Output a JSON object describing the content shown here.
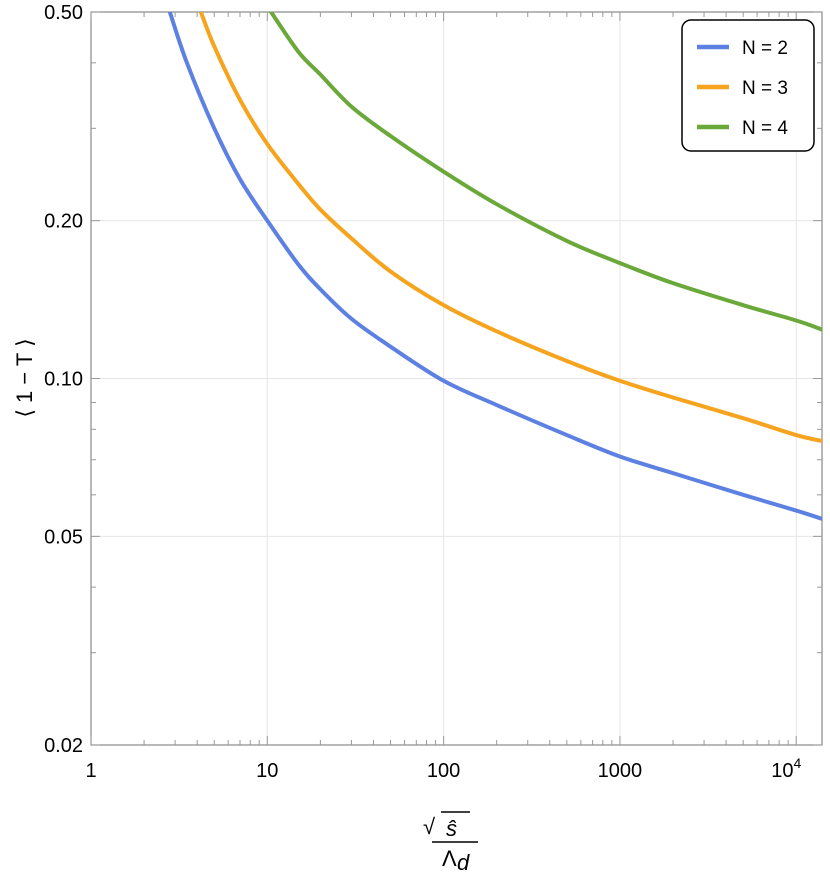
{
  "chart_data": {
    "type": "line",
    "xscale": "log",
    "yscale": "log",
    "xlim": [
      1,
      14000
    ],
    "ylim": [
      0.02,
      0.5
    ],
    "x_ticks": [
      {
        "value": 1,
        "label": "1"
      },
      {
        "value": 10,
        "label": "10"
      },
      {
        "value": 100,
        "label": "100"
      },
      {
        "value": 1000,
        "label": "1000"
      },
      {
        "value": 10000,
        "label": "10",
        "sup": "4"
      }
    ],
    "y_ticks": [
      {
        "value": 0.5,
        "label": "0.50"
      },
      {
        "value": 0.2,
        "label": "0.20"
      },
      {
        "value": 0.1,
        "label": "0.10"
      },
      {
        "value": 0.05,
        "label": "0.05"
      },
      {
        "value": 0.02,
        "label": "0.02"
      }
    ],
    "ylabel": "⟨ 1 − T ⟩",
    "xlabel": {
      "numerator": "ŝ",
      "denominator": "Λ",
      "denominator_sub": "d"
    },
    "legend_position": "top-right",
    "series": [
      {
        "name": "N = 2",
        "color": "#5d81e3",
        "x": [
          2.8,
          3.5,
          5,
          7,
          10,
          15,
          20,
          30,
          50,
          100,
          200,
          500,
          1000,
          2000,
          5000,
          10000,
          14000
        ],
        "y": [
          0.5,
          0.4,
          0.3,
          0.24,
          0.2,
          0.165,
          0.148,
          0.13,
          0.115,
          0.099,
          0.089,
          0.078,
          0.071,
          0.066,
          0.06,
          0.056,
          0.054
        ]
      },
      {
        "name": "N = 3",
        "color": "#f6a31d",
        "x": [
          4.2,
          5,
          7,
          10,
          15,
          20,
          30,
          50,
          100,
          200,
          500,
          1000,
          2000,
          5000,
          10000,
          14000
        ],
        "y": [
          0.5,
          0.43,
          0.34,
          0.28,
          0.235,
          0.21,
          0.185,
          0.16,
          0.138,
          0.123,
          0.108,
          0.099,
          0.092,
          0.084,
          0.078,
          0.076
        ]
      },
      {
        "name": "N = 4",
        "color": "#6ba83a",
        "x": [
          10.5,
          15,
          20,
          30,
          50,
          100,
          200,
          500,
          1000,
          2000,
          5000,
          10000,
          14000
        ],
        "y": [
          0.5,
          0.42,
          0.38,
          0.33,
          0.29,
          0.248,
          0.215,
          0.183,
          0.166,
          0.152,
          0.138,
          0.129,
          0.124
        ]
      }
    ]
  }
}
